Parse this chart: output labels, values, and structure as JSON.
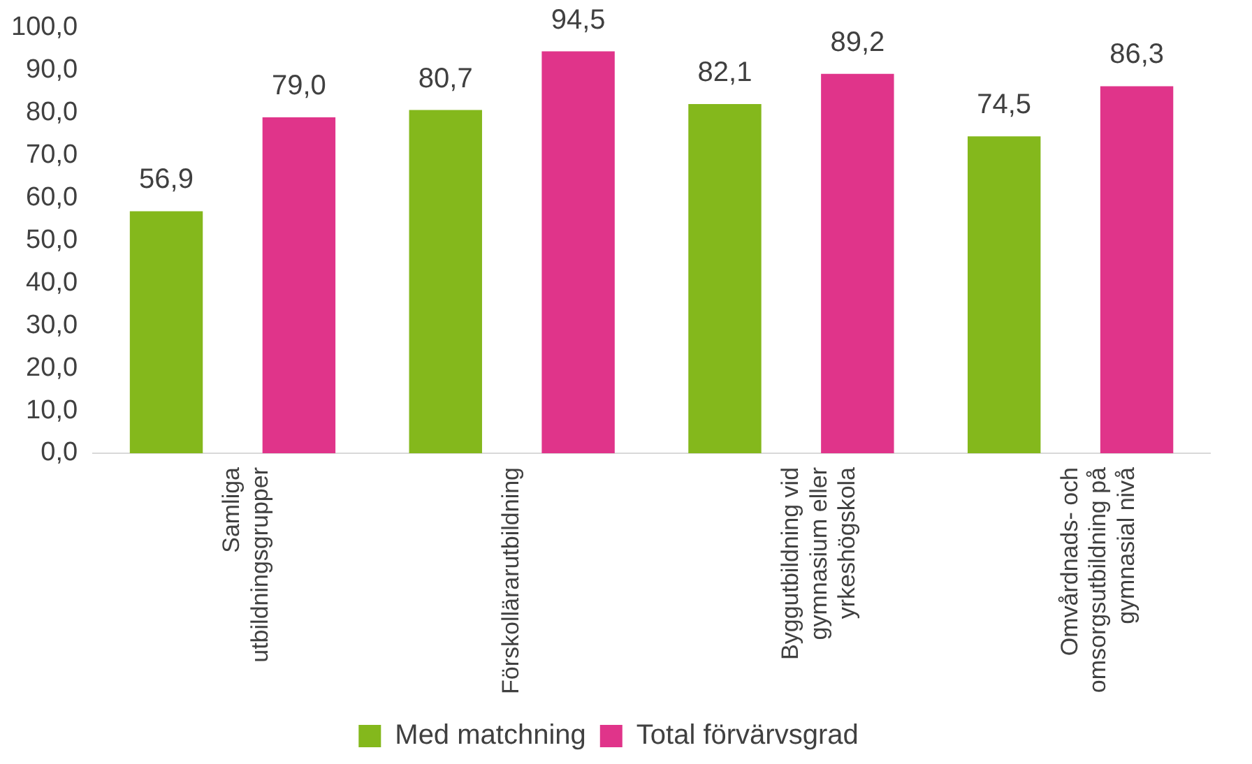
{
  "chart_data": {
    "type": "bar",
    "categories": [
      "Samliga utbildningsgrupper",
      "Förskollärarutbildning",
      "Byggutbildning vid gymnasium eller yrkeshögskola",
      "Omvårdnads- och omsorgsutbildning på gymnasial nivå"
    ],
    "series": [
      {
        "name": "Med matchning",
        "color": "#84b81c",
        "values": [
          56.9,
          80.7,
          82.1,
          74.5
        ],
        "value_labels": [
          "56,9",
          "80,7",
          "82,1",
          "74,5"
        ]
      },
      {
        "name": "Total förvärvsgrad",
        "color": "#e0348a",
        "values": [
          79.0,
          94.5,
          89.2,
          86.3
        ],
        "value_labels": [
          "79,0",
          "94,5",
          "89,2",
          "86,3"
        ]
      }
    ],
    "ylim": [
      0,
      100
    ],
    "yticks": [
      {
        "value": 0,
        "label": "0,0"
      },
      {
        "value": 10,
        "label": "10,0"
      },
      {
        "value": 20,
        "label": "20,0"
      },
      {
        "value": 30,
        "label": "30,0"
      },
      {
        "value": 40,
        "label": "40,0"
      },
      {
        "value": 50,
        "label": "50,0"
      },
      {
        "value": 60,
        "label": "60,0"
      },
      {
        "value": 70,
        "label": "70,0"
      },
      {
        "value": 80,
        "label": "80,0"
      },
      {
        "value": 90,
        "label": "90,0"
      },
      {
        "value": 100,
        "label": "100,0"
      }
    ],
    "grid": false,
    "legend": "bottom"
  }
}
